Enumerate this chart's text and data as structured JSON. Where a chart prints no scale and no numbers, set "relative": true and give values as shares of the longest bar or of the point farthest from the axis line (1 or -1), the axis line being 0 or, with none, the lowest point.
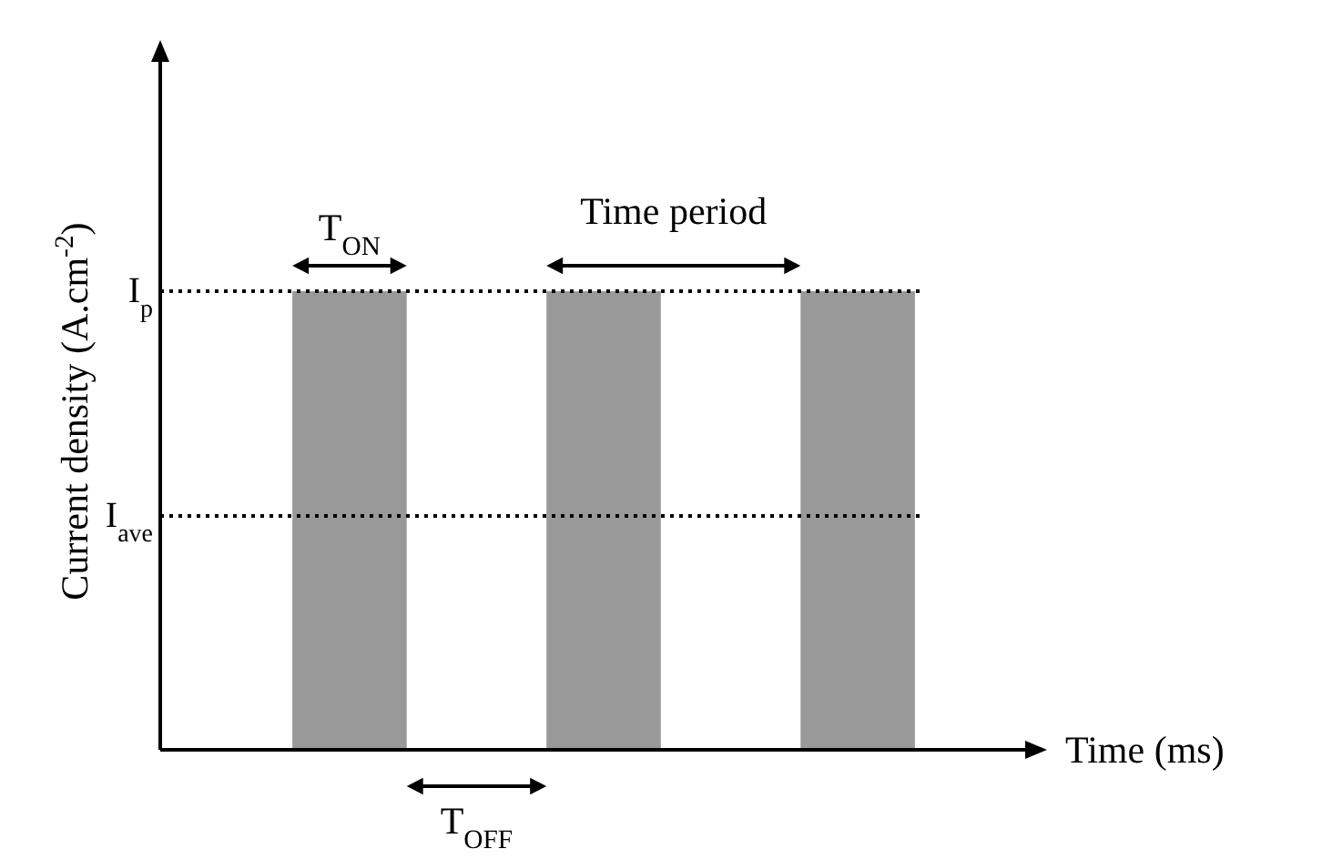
{
  "chart_data": {
    "type": "bar",
    "relative": true,
    "xlabel": "Time (ms)",
    "ylabel": "Current density (A.cm$^{-2}$)",
    "categories": [
      null,
      null,
      null
    ],
    "values": [
      1,
      1,
      1
    ],
    "color": "#999999",
    "ref_lines": [
      {
        "axis": "y",
        "value": 1,
        "label": "I$_{p}$",
        "line_style": "dotted",
        "color": "#000000"
      },
      {
        "axis": "y",
        "value": 0.51,
        "label": "I$_{ave}$",
        "line_style": "dotted",
        "color": "#000000"
      }
    ],
    "annotations": [
      "T$_{ON}$",
      "Time period",
      "T$_{OFF}$"
    ]
  }
}
